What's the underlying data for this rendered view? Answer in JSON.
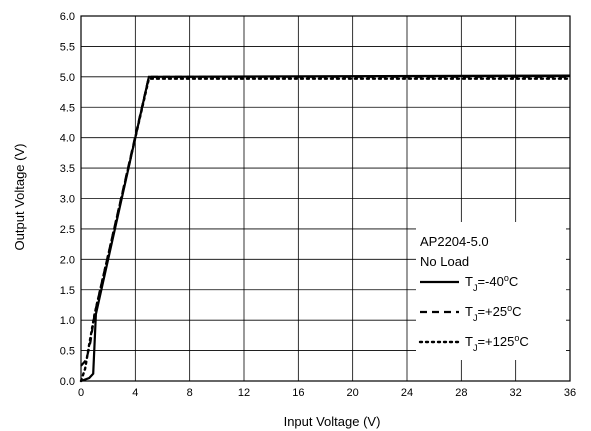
{
  "chart_data": {
    "type": "line",
    "xlabel": "Input Voltage (V)",
    "ylabel": "Output Voltage (V)",
    "xlim": [
      0,
      36
    ],
    "ylim": [
      0,
      6
    ],
    "x_ticks": [
      "0",
      "4",
      "8",
      "12",
      "16",
      "20",
      "24",
      "28",
      "32",
      "36"
    ],
    "y_ticks": [
      "0.0",
      "0.5",
      "1.0",
      "1.5",
      "2.0",
      "2.5",
      "3.0",
      "3.5",
      "4.0",
      "4.5",
      "5.0",
      "5.5",
      "6.0"
    ],
    "grid": true,
    "legend_placement": "bottom-right",
    "annotation": {
      "line1": "AP2204-5.0",
      "line2": "No Load"
    },
    "series": [
      {
        "name": "TJ=-40°C",
        "label_main": "T",
        "label_sub": "J",
        "label_value": "=-40",
        "label_sup": "o",
        "label_unit": "C",
        "style": "solid",
        "x": [
          0,
          0.6,
          0.9,
          1.1,
          5.0,
          36
        ],
        "y": [
          0.0,
          0.05,
          0.12,
          1.1,
          5.0,
          5.02
        ]
      },
      {
        "name": "TJ=+25°C",
        "label_main": "T",
        "label_sub": "J",
        "label_value": "=+25",
        "label_sup": "o",
        "label_unit": "C",
        "style": "dashed",
        "x": [
          0,
          0.4,
          0.7,
          1.0,
          5.0,
          36
        ],
        "y": [
          0.25,
          0.35,
          0.65,
          1.1,
          5.0,
          5.0
        ]
      },
      {
        "name": "TJ=+125°C",
        "label_main": "T",
        "label_sub": "J",
        "label_value": "=+125",
        "label_sup": "o",
        "label_unit": "C",
        "style": "dotted",
        "x": [
          0,
          0.3,
          0.6,
          1.0,
          5.0,
          36
        ],
        "y": [
          0.0,
          0.2,
          0.6,
          1.1,
          4.97,
          4.97
        ]
      }
    ]
  }
}
